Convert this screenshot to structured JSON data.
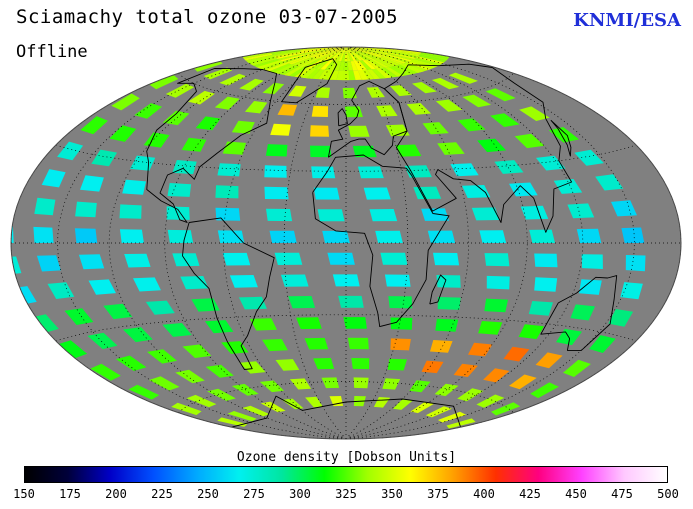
{
  "title": "Sciamachy total ozone  03-07-2005",
  "subtitle": "Offline",
  "credit": "KNMI/ESA",
  "projection": "Hammer-Aitoff global, orbit swaths",
  "colorbar": {
    "title": "Ozone density [Dobson Units]",
    "min": 150,
    "max": 500,
    "ticks": [
      "150",
      "175",
      "200",
      "225",
      "250",
      "275",
      "300",
      "325",
      "350",
      "375",
      "400",
      "425",
      "450",
      "475",
      "500"
    ],
    "colors": [
      "#000000",
      "#00003a",
      "#0000c8",
      "#0050ff",
      "#00a8ff",
      "#00f0f0",
      "#00e6a0",
      "#00ff00",
      "#a0ff00",
      "#ffff00",
      "#ffa000",
      "#ff3000",
      "#ff0080",
      "#ff40ff",
      "#ffc8ff",
      "#ffffff"
    ]
  },
  "colors": {
    "map_background": "#808080",
    "credit": "#1f2fd8",
    "coastline": "#000000",
    "graticule": "#000000"
  }
}
